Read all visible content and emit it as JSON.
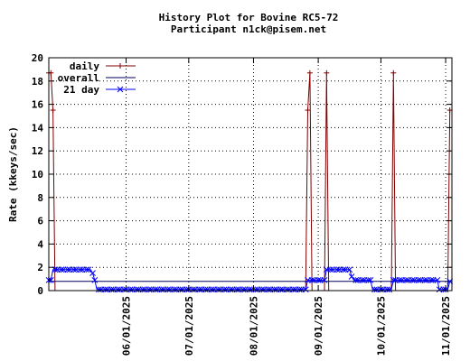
{
  "colors": {
    "daily": "#800000",
    "overall": "#000060",
    "avg21": "#0000ff",
    "grid": "#000000",
    "axis": "#000000",
    "background": "#ffffff"
  },
  "chart_data": {
    "type": "line",
    "title": "History Plot for Bovine RC5-72",
    "subtitle": "Participant n1ck@pisem.net",
    "xlabel": "",
    "ylabel": "Rate (kkeys/sec)",
    "ylim": [
      0,
      20
    ],
    "yticks": [
      0,
      2,
      4,
      6,
      8,
      10,
      12,
      14,
      16,
      18,
      20
    ],
    "xlim": [
      "2025-04-25",
      "2025-11-04"
    ],
    "xticks": [
      "2025-06-01",
      "2025-07-01",
      "2025-08-01",
      "2025-09-01",
      "2025-10-01",
      "2025-11-01"
    ],
    "xtick_labels": [
      "06/01/2025",
      "07/01/2025",
      "08/01/2025",
      "09/01/2025",
      "10/01/2025",
      "11/01/2025"
    ],
    "grid": true,
    "legend_position": "top-left",
    "series": [
      {
        "name": "daily",
        "style": "line-with-plus-markers",
        "points": [
          [
            "2025-04-25",
            18.7
          ],
          [
            "2025-04-26",
            18.7
          ],
          [
            "2025-04-27",
            15.5
          ],
          [
            "2025-04-28",
            0
          ],
          [
            "2025-08-26",
            0
          ],
          [
            "2025-08-27",
            15.5
          ],
          [
            "2025-08-28",
            18.7
          ],
          [
            "2025-08-29",
            0
          ],
          [
            "2025-09-04",
            0
          ],
          [
            "2025-09-05",
            18.7
          ],
          [
            "2025-09-06",
            0
          ],
          [
            "2025-09-29",
            0
          ],
          [
            "2025-09-30",
            0
          ],
          [
            "2025-10-06",
            0
          ],
          [
            "2025-10-07",
            18.7
          ],
          [
            "2025-10-08",
            0
          ],
          [
            "2025-11-02",
            0
          ],
          [
            "2025-11-03",
            15.5
          ]
        ]
      },
      {
        "name": "overall",
        "style": "line",
        "points": [
          [
            "2025-04-25",
            0.8
          ],
          [
            "2025-11-04",
            0.8
          ]
        ]
      },
      {
        "name": "21 day",
        "style": "line-with-x-markers",
        "points": [
          [
            "2025-04-25",
            0.9
          ],
          [
            "2025-04-26",
            0.9
          ],
          [
            "2025-04-27",
            1.8
          ],
          [
            "2025-05-15",
            1.8
          ],
          [
            "2025-05-16",
            1.5
          ],
          [
            "2025-05-17",
            0.9
          ],
          [
            "2025-05-18",
            0.1
          ],
          [
            "2025-08-26",
            0.1
          ],
          [
            "2025-08-27",
            0.9
          ],
          [
            "2025-09-04",
            0.9
          ],
          [
            "2025-09-05",
            1.8
          ],
          [
            "2025-09-16",
            1.8
          ],
          [
            "2025-09-17",
            1.2
          ],
          [
            "2025-09-18",
            0.9
          ],
          [
            "2025-09-26",
            0.9
          ],
          [
            "2025-09-27",
            0.1
          ],
          [
            "2025-10-06",
            0.1
          ],
          [
            "2025-10-07",
            0.9
          ],
          [
            "2025-10-28",
            0.9
          ],
          [
            "2025-10-29",
            0.1
          ],
          [
            "2025-11-02",
            0.1
          ],
          [
            "2025-11-03",
            0.8
          ]
        ]
      }
    ]
  }
}
